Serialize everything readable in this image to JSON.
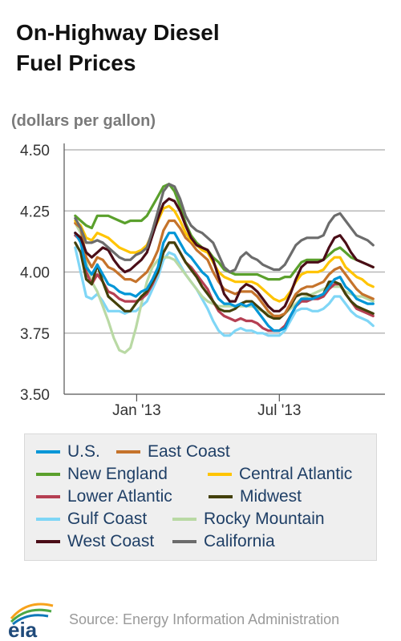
{
  "header": {
    "title_line1": "On-Highway Diesel",
    "title_line2": "Fuel Prices"
  },
  "footer": {
    "source": "Source: Energy Information Administration",
    "logo_text": "eia"
  },
  "chart_data": {
    "type": "line",
    "title": "On-Highway Diesel Fuel Prices",
    "ylabel": "(dollars per gallon)",
    "xlabel": "",
    "ylim": [
      3.5,
      4.5
    ],
    "yticks": [
      "4.50",
      "4.25",
      "4.00",
      "3.75",
      "3.50"
    ],
    "xticks": [
      "Jan '13",
      "Jul '13"
    ],
    "grid": true,
    "legend": "bottom",
    "x": [
      "2012-10-15",
      "2012-10-22",
      "2012-10-29",
      "2012-11-05",
      "2012-11-12",
      "2012-11-19",
      "2012-11-26",
      "2012-12-03",
      "2012-12-10",
      "2012-12-17",
      "2012-12-24",
      "2012-12-31",
      "2013-01-07",
      "2013-01-14",
      "2013-01-21",
      "2013-01-28",
      "2013-02-04",
      "2013-02-11",
      "2013-02-18",
      "2013-02-25",
      "2013-03-04",
      "2013-03-11",
      "2013-03-18",
      "2013-03-25",
      "2013-04-01",
      "2013-04-08",
      "2013-04-15",
      "2013-04-22",
      "2013-04-29",
      "2013-05-06",
      "2013-05-13",
      "2013-05-20",
      "2013-05-27",
      "2013-06-03",
      "2013-06-10",
      "2013-06-17",
      "2013-06-24",
      "2013-07-01",
      "2013-07-08",
      "2013-07-15",
      "2013-07-22",
      "2013-07-29",
      "2013-08-05",
      "2013-08-12",
      "2013-08-19",
      "2013-08-26",
      "2013-09-02",
      "2013-09-09",
      "2013-09-16",
      "2013-09-23",
      "2013-09-30",
      "2013-10-07",
      "2013-10-14",
      "2013-10-21",
      "2013-10-28"
    ],
    "series": [
      {
        "name": "U.S.",
        "color": "#0096d7",
        "values": [
          4.16,
          4.12,
          4.02,
          3.99,
          4.03,
          3.99,
          3.95,
          3.94,
          3.92,
          3.91,
          3.91,
          3.9,
          3.92,
          3.93,
          3.97,
          4.02,
          4.12,
          4.16,
          4.16,
          4.12,
          4.08,
          4.06,
          4.03,
          4.0,
          3.98,
          3.93,
          3.89,
          3.87,
          3.87,
          3.86,
          3.87,
          3.86,
          3.87,
          3.84,
          3.81,
          3.78,
          3.76,
          3.76,
          3.77,
          3.82,
          3.86,
          3.89,
          3.89,
          3.89,
          3.9,
          3.91,
          3.94,
          3.97,
          3.98,
          3.94,
          3.92,
          3.89,
          3.88,
          3.87,
          3.87
        ]
      },
      {
        "name": "East Coast",
        "color": "#c5732b",
        "values": [
          4.2,
          4.18,
          4.06,
          4.02,
          4.06,
          4.05,
          4.02,
          4.01,
          3.99,
          3.97,
          3.97,
          3.96,
          3.98,
          4.0,
          4.04,
          4.09,
          4.17,
          4.21,
          4.21,
          4.18,
          4.14,
          4.12,
          4.09,
          4.07,
          4.05,
          4.0,
          3.96,
          3.93,
          3.92,
          3.91,
          3.92,
          3.92,
          3.92,
          3.9,
          3.87,
          3.84,
          3.82,
          3.82,
          3.83,
          3.87,
          3.91,
          3.93,
          3.94,
          3.94,
          3.95,
          3.96,
          3.99,
          4.01,
          4.02,
          3.99,
          3.96,
          3.93,
          3.91,
          3.9,
          3.89
        ]
      },
      {
        "name": "New England",
        "color": "#5aa02c",
        "values": [
          4.23,
          4.21,
          4.19,
          4.18,
          4.23,
          4.23,
          4.23,
          4.22,
          4.21,
          4.2,
          4.21,
          4.21,
          4.21,
          4.23,
          4.27,
          4.31,
          4.35,
          4.36,
          4.33,
          4.27,
          4.2,
          4.15,
          4.12,
          4.1,
          4.09,
          4.06,
          4.04,
          4.01,
          4.0,
          3.99,
          3.99,
          3.99,
          3.99,
          3.99,
          3.98,
          3.97,
          3.97,
          3.97,
          3.98,
          3.98,
          4.01,
          4.04,
          4.05,
          4.05,
          4.05,
          4.05,
          4.07,
          4.09,
          4.1,
          4.08,
          4.06,
          4.05,
          4.04,
          4.03,
          4.02
        ]
      },
      {
        "name": "Central Atlantic",
        "color": "#ffc400",
        "values": [
          4.21,
          4.19,
          4.14,
          4.13,
          4.16,
          4.15,
          4.14,
          4.12,
          4.1,
          4.09,
          4.08,
          4.08,
          4.09,
          4.11,
          4.16,
          4.21,
          4.26,
          4.27,
          4.25,
          4.21,
          4.16,
          4.13,
          4.11,
          4.09,
          4.08,
          4.04,
          4.0,
          3.98,
          3.97,
          3.96,
          3.96,
          3.96,
          3.96,
          3.95,
          3.93,
          3.91,
          3.89,
          3.88,
          3.89,
          3.92,
          3.96,
          3.99,
          4.0,
          4.0,
          4.0,
          4.01,
          4.04,
          4.06,
          4.06,
          4.02,
          4.0,
          3.98,
          3.97,
          3.95,
          3.94
        ]
      },
      {
        "name": "Lower Atlantic",
        "color": "#b53f52",
        "values": [
          4.15,
          4.13,
          4.0,
          3.95,
          3.99,
          3.96,
          3.92,
          3.91,
          3.89,
          3.88,
          3.88,
          3.88,
          3.89,
          3.91,
          3.95,
          4.0,
          4.08,
          4.12,
          4.12,
          4.08,
          4.04,
          4.02,
          3.99,
          3.96,
          3.93,
          3.88,
          3.84,
          3.82,
          3.81,
          3.8,
          3.81,
          3.8,
          3.8,
          3.79,
          3.77,
          3.76,
          3.76,
          3.76,
          3.78,
          3.82,
          3.86,
          3.88,
          3.88,
          3.89,
          3.89,
          3.9,
          3.93,
          3.95,
          3.95,
          3.91,
          3.88,
          3.85,
          3.84,
          3.83,
          3.82
        ]
      },
      {
        "name": "Midwest",
        "color": "#43400a",
        "values": [
          4.12,
          4.08,
          3.97,
          3.95,
          4.03,
          3.96,
          3.9,
          3.88,
          3.86,
          3.84,
          3.84,
          3.87,
          3.9,
          3.92,
          3.96,
          4.0,
          4.08,
          4.12,
          4.12,
          4.08,
          4.04,
          4.01,
          3.98,
          3.94,
          3.91,
          3.88,
          3.85,
          3.84,
          3.84,
          3.85,
          3.87,
          3.88,
          3.88,
          3.86,
          3.84,
          3.82,
          3.81,
          3.81,
          3.83,
          3.86,
          3.9,
          3.91,
          3.91,
          3.9,
          3.9,
          3.91,
          3.96,
          3.96,
          3.95,
          3.91,
          3.88,
          3.86,
          3.85,
          3.84,
          3.83
        ]
      },
      {
        "name": "Gulf Coast",
        "color": "#7fd6f6",
        "values": [
          4.1,
          4.0,
          3.9,
          3.89,
          3.91,
          3.88,
          3.84,
          3.84,
          3.84,
          3.83,
          3.84,
          3.84,
          3.86,
          3.88,
          3.93,
          3.98,
          4.05,
          4.08,
          4.07,
          4.03,
          3.99,
          3.96,
          3.93,
          3.89,
          3.85,
          3.8,
          3.76,
          3.74,
          3.74,
          3.76,
          3.77,
          3.76,
          3.76,
          3.75,
          3.75,
          3.74,
          3.74,
          3.74,
          3.76,
          3.8,
          3.84,
          3.85,
          3.85,
          3.84,
          3.84,
          3.85,
          3.87,
          3.9,
          3.9,
          3.87,
          3.84,
          3.82,
          3.81,
          3.8,
          3.78
        ]
      },
      {
        "name": "Rocky Mountain",
        "color": "#b9d9a4",
        "values": [
          4.2,
          4.16,
          4.04,
          3.96,
          3.92,
          3.86,
          3.8,
          3.73,
          3.68,
          3.67,
          3.69,
          3.77,
          3.87,
          3.96,
          4.02,
          4.05,
          4.06,
          4.06,
          4.05,
          4.02,
          3.99,
          3.96,
          3.93,
          3.9,
          3.88,
          3.87,
          3.86,
          3.86,
          3.86,
          3.86,
          3.86,
          3.86,
          3.86,
          3.85,
          3.84,
          3.83,
          3.82,
          3.82,
          3.83,
          3.85,
          3.87,
          3.89,
          3.9,
          3.91,
          3.92,
          3.93,
          3.94,
          3.94,
          3.94,
          3.92,
          3.91,
          3.9,
          3.9,
          3.89,
          3.88
        ]
      },
      {
        "name": "West Coast",
        "color": "#4a0d17",
        "values": [
          4.16,
          4.14,
          4.08,
          4.06,
          4.08,
          4.1,
          4.09,
          4.05,
          4.02,
          4.0,
          4.01,
          4.03,
          4.05,
          4.08,
          4.15,
          4.22,
          4.28,
          4.3,
          4.29,
          4.25,
          4.19,
          4.14,
          4.11,
          4.1,
          4.09,
          4.05,
          3.98,
          3.91,
          3.88,
          3.88,
          3.93,
          3.95,
          3.94,
          3.92,
          3.89,
          3.86,
          3.84,
          3.84,
          3.86,
          3.91,
          3.97,
          4.02,
          4.04,
          4.04,
          4.04,
          4.05,
          4.1,
          4.14,
          4.15,
          4.12,
          4.08,
          4.05,
          4.04,
          4.03,
          4.02
        ]
      },
      {
        "name": "California",
        "color": "#6c6c6c",
        "values": [
          4.22,
          4.18,
          4.12,
          4.12,
          4.13,
          4.12,
          4.1,
          4.08,
          4.06,
          4.05,
          4.05,
          4.07,
          4.08,
          4.1,
          4.17,
          4.25,
          4.33,
          4.36,
          4.35,
          4.3,
          4.23,
          4.19,
          4.17,
          4.16,
          4.14,
          4.12,
          4.07,
          4.02,
          4.0,
          4.01,
          4.06,
          4.08,
          4.06,
          4.05,
          4.03,
          4.02,
          4.01,
          4.01,
          4.03,
          4.07,
          4.11,
          4.13,
          4.14,
          4.14,
          4.14,
          4.15,
          4.2,
          4.23,
          4.24,
          4.21,
          4.18,
          4.15,
          4.14,
          4.13,
          4.11
        ]
      }
    ]
  }
}
